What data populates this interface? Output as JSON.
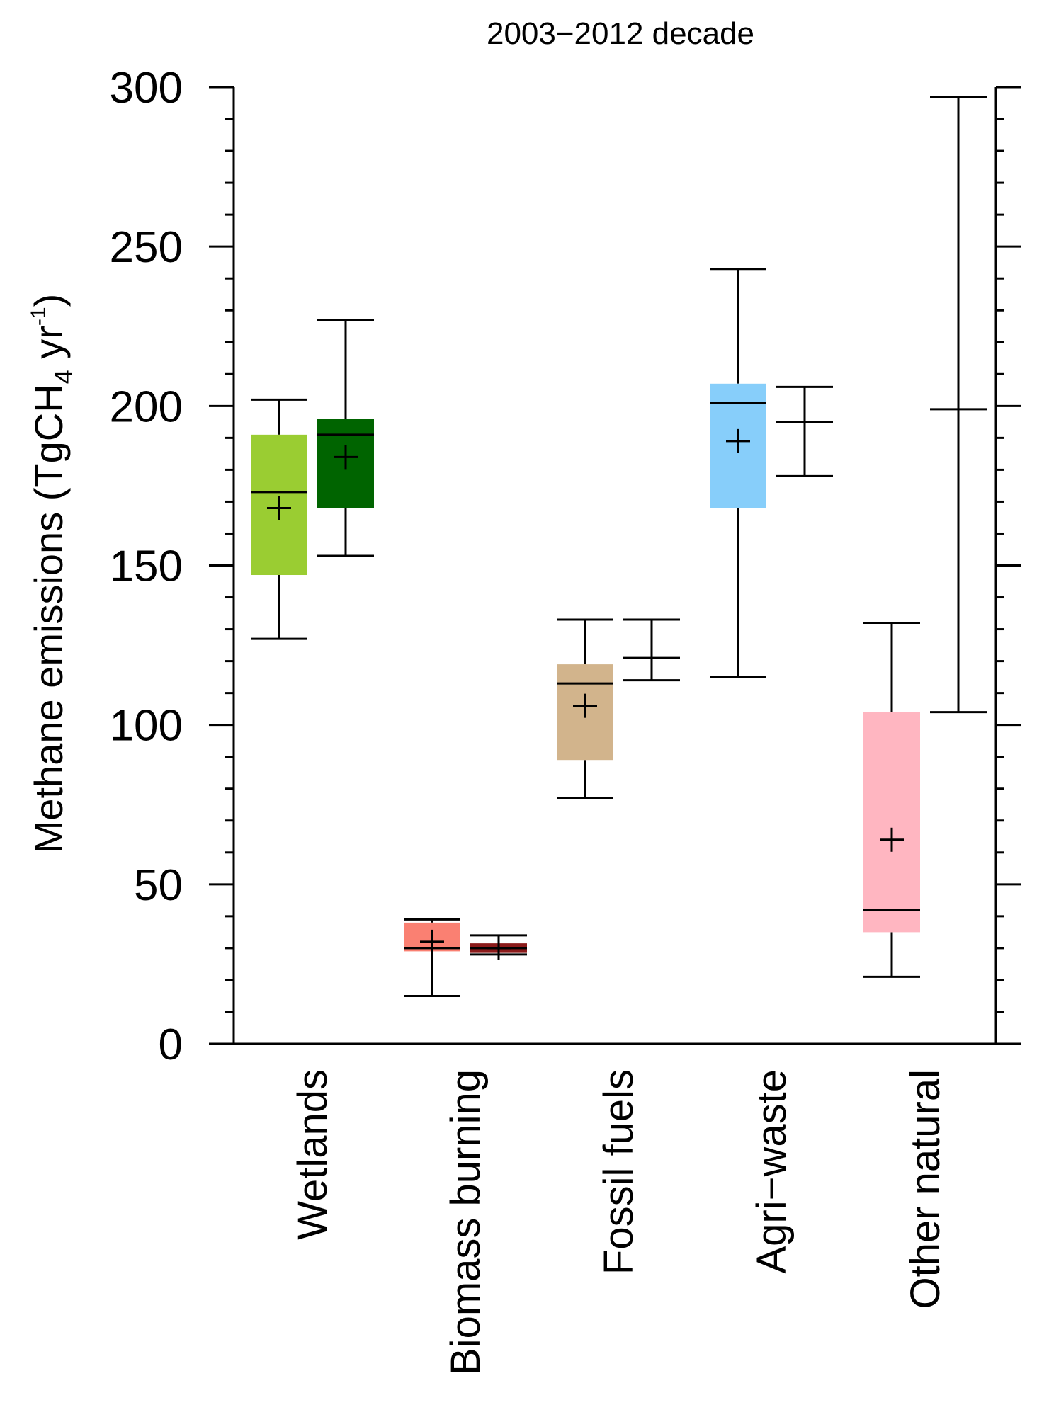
{
  "chart_data": {
    "type": "box",
    "title": "2003−2012 decade",
    "ylabel": "Methane emissions (TgCH",
    "ylabel_sub": "4",
    "ylabel_mid": " yr",
    "ylabel_sup": "-1",
    "ylabel_end": ")",
    "ylim": [
      0,
      300
    ],
    "yticks": [
      0,
      50,
      100,
      150,
      200,
      250,
      300
    ],
    "yminor_step": 10,
    "categories": [
      "Wetlands",
      "Biomass burning",
      "Fossil fuels",
      "Agri−waste",
      "Other natural"
    ],
    "grid": false,
    "boxes": [
      {
        "category": "Wetlands",
        "slot": 0,
        "min": 127,
        "q1": 147,
        "median": 173,
        "q3": 191,
        "max": 202,
        "mean": 168,
        "color": "#9acd32",
        "box": true
      },
      {
        "category": "Wetlands",
        "slot": 1,
        "min": 153,
        "q1": 168,
        "median": 191,
        "q3": 196,
        "max": 227,
        "mean": 184,
        "color": "#006400",
        "box": true
      },
      {
        "category": "Biomass burning",
        "slot": 0,
        "min": 15,
        "q1": 29,
        "median": 30,
        "q3": 38,
        "max": 39,
        "mean": 32,
        "color": "#fa8072",
        "box": true
      },
      {
        "category": "Biomass burning",
        "slot": 1,
        "min": 28,
        "q1": 28.5,
        "median": 30,
        "q3": 31.5,
        "max": 34,
        "mean": 30,
        "color": "#8b1a1a",
        "box": true
      },
      {
        "category": "Fossil fuels",
        "slot": 0,
        "min": 77,
        "q1": 89,
        "median": 113,
        "q3": 119,
        "max": 133,
        "mean": 106,
        "color": "#d2b48c",
        "box": true
      },
      {
        "category": "Fossil fuels",
        "slot": 1,
        "min": 114,
        "q1": null,
        "median": null,
        "q3": null,
        "max": 133,
        "mean": 121,
        "color": null,
        "box": false
      },
      {
        "category": "Agri−waste",
        "slot": 0,
        "min": 115,
        "q1": 168,
        "median": 201,
        "q3": 207,
        "max": 243,
        "mean": 189,
        "color": "#87cefa",
        "box": true
      },
      {
        "category": "Agri−waste",
        "slot": 1,
        "min": 178,
        "q1": null,
        "median": null,
        "q3": null,
        "max": 206,
        "mean": 195,
        "color": null,
        "box": false
      },
      {
        "category": "Other natural",
        "slot": 0,
        "min": 21,
        "q1": 35,
        "median": 42,
        "q3": 104,
        "max": 132,
        "mean": 64,
        "color": "#ffb6c1",
        "box": true
      },
      {
        "category": "Other natural",
        "slot": 1,
        "min": 104,
        "q1": null,
        "median": null,
        "q3": null,
        "max": 297,
        "mean": 199,
        "color": null,
        "box": false
      }
    ]
  }
}
